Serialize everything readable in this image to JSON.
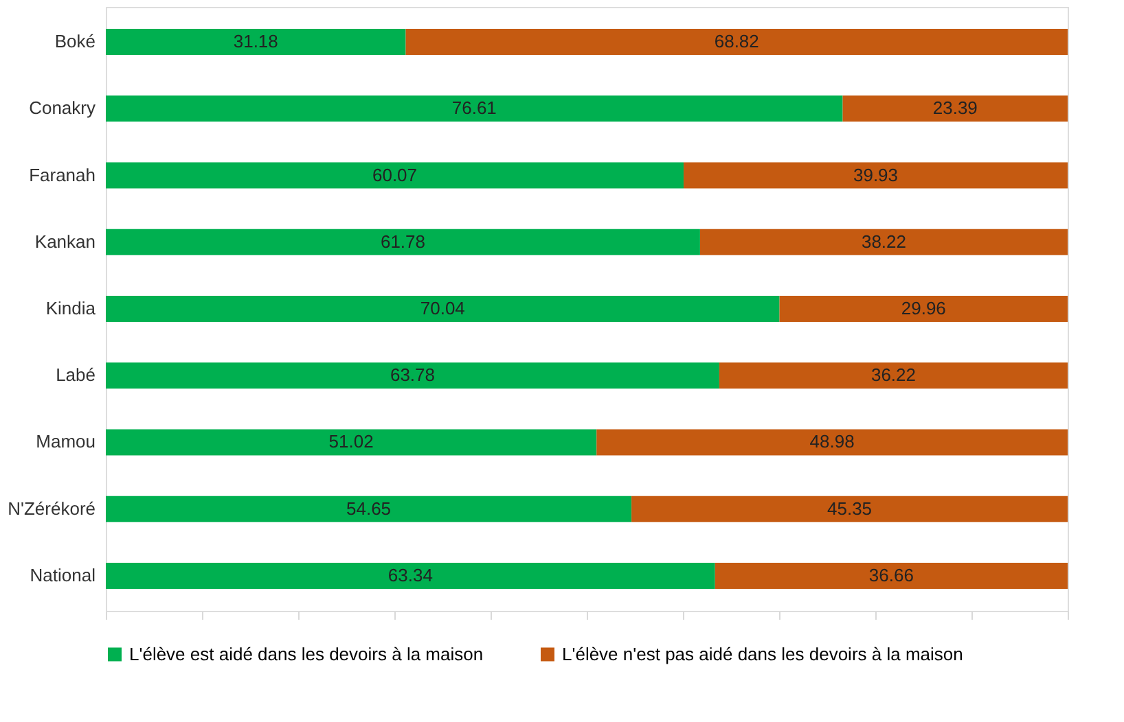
{
  "chart_data": {
    "type": "bar",
    "orientation": "horizontal",
    "stacked": true,
    "categories": [
      "Boké",
      "Conakry",
      "Faranah",
      "Kankan",
      "Kindia",
      "Labé",
      "Mamou",
      "N'Zérékoré",
      "National"
    ],
    "series": [
      {
        "name": "L'élève est aidé dans les devoirs à la maison",
        "color": "#00b050",
        "values": [
          31.18,
          76.61,
          60.07,
          61.78,
          70.04,
          63.78,
          51.02,
          54.65,
          63.34
        ]
      },
      {
        "name": "L'élève n'est pas aidé dans les devoirs à la maison",
        "color": "#c55a11",
        "values": [
          68.82,
          23.39,
          39.93,
          38.22,
          29.96,
          36.22,
          48.98,
          45.35,
          36.66
        ]
      }
    ],
    "xlim": [
      0,
      100
    ],
    "xticks": [
      {
        "value": 0,
        "label": null
      },
      {
        "value": 10,
        "label": null
      },
      {
        "value": 20,
        "label": null
      },
      {
        "value": 30,
        "label": null
      },
      {
        "value": 40,
        "label": null
      },
      {
        "value": 50,
        "label": null
      },
      {
        "value": 60,
        "label": null
      },
      {
        "value": 70,
        "label": null
      },
      {
        "value": 80,
        "label": null
      },
      {
        "value": 90,
        "label": null
      },
      {
        "value": 100,
        "label": null
      }
    ],
    "tick_labels": "y",
    "data_labels": true,
    "grid": false,
    "legend": "bottom"
  }
}
